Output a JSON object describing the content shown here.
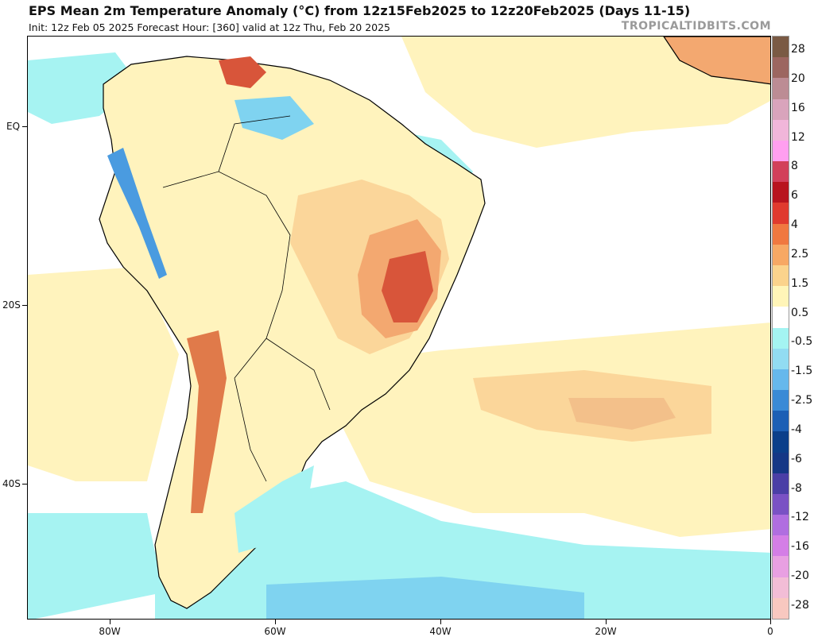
{
  "header": {
    "title": "EPS Mean 2m Temperature Anomaly (°C) from 12z15Feb2025 to 12z20Feb2025 (Days 11-15)",
    "subtitle": "Init: 12z Feb 05 2025   Forecast Hour: [360]   valid at 12z Thu, Feb 20 2025",
    "credit": "TROPICALTIDBITS.COM"
  },
  "axes": {
    "lat_labels": [
      "EQ",
      "20S",
      "40S"
    ],
    "lon_labels": [
      "80W",
      "60W",
      "40W",
      "20W",
      "0"
    ]
  },
  "colorbar": {
    "labels": [
      "28",
      "20",
      "16",
      "12",
      "8",
      "6",
      "4",
      "2.5",
      "1.5",
      "0.5",
      "-0.5",
      "-1.5",
      "-2.5",
      "-4",
      "-6",
      "-8",
      "-12",
      "-16",
      "-20",
      "-28"
    ],
    "colors": [
      "#7a5a44",
      "#9c6660",
      "#bc8c94",
      "#d9a4bc",
      "#f1b6da",
      "#ff9ff0",
      "#d2405a",
      "#b8141e",
      "#e03a2e",
      "#f07840",
      "#f7a864",
      "#fbd38c",
      "#fff5b8",
      "#ffffff",
      "#a4f4f2",
      "#92dcf2",
      "#66b8ec",
      "#3a8ad6",
      "#1c5fb5",
      "#0b3f8a",
      "#153786",
      "#4a3fa6",
      "#7a52c4",
      "#b06ee0",
      "#d47ee6",
      "#e8a0e2",
      "#f2bdd6",
      "#f8c8c0"
    ]
  },
  "map": {
    "region": "South America / South Atlantic",
    "colors": {
      "ocean": "#ffffff",
      "warm_light": "#fff3bd",
      "warm_mid": "#fbd69a",
      "warm_strong": "#f3a870",
      "hot": "#d8553a",
      "cool_light": "#a6f3f2",
      "cool_mid": "#7fd3f0",
      "cool_strong": "#4a9be0",
      "coast": "#000000"
    }
  }
}
